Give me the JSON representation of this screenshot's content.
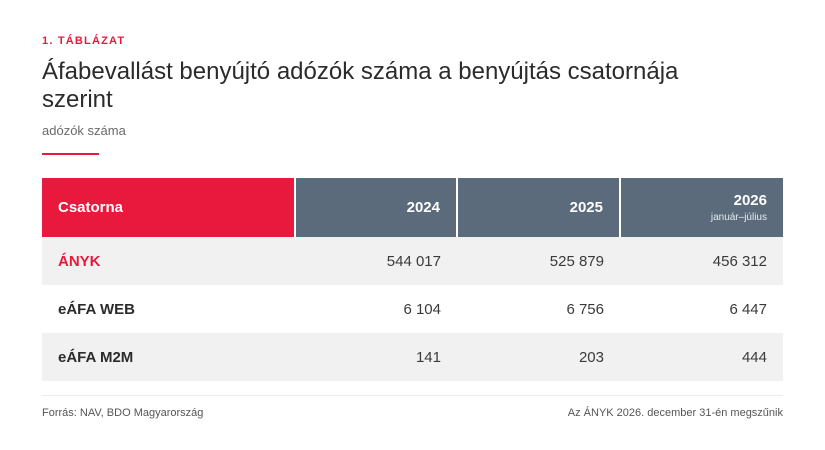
{
  "kicker": "1. TÁBLÁZAT",
  "title": "Áfabevallást benyújtó adózók száma a benyújtás csatornája szerint",
  "subtitle": "adózók száma",
  "table": {
    "headers": [
      {
        "label": "Csatorna",
        "sub": ""
      },
      {
        "label": "2024",
        "sub": ""
      },
      {
        "label": "2025",
        "sub": ""
      },
      {
        "label": "2026",
        "sub": "január–július"
      }
    ],
    "rows": [
      {
        "label": "ÁNYK",
        "values": [
          "544 017",
          "525 879",
          "456 312"
        ]
      },
      {
        "label": "eÁFA WEB",
        "values": [
          "6 104",
          "6 756",
          "6 447"
        ]
      },
      {
        "label": "eÁFA M2M",
        "values": [
          "141",
          "203",
          "444"
        ]
      }
    ]
  },
  "footer": {
    "source": "Forrás: NAV, BDO Magyarország",
    "note": "Az ÁNYK 2026. december 31-én megszűnik"
  },
  "colors": {
    "accent": "#e8193c",
    "header_bg": "#5b6b7b",
    "row_shade": "#f1f1f1"
  }
}
